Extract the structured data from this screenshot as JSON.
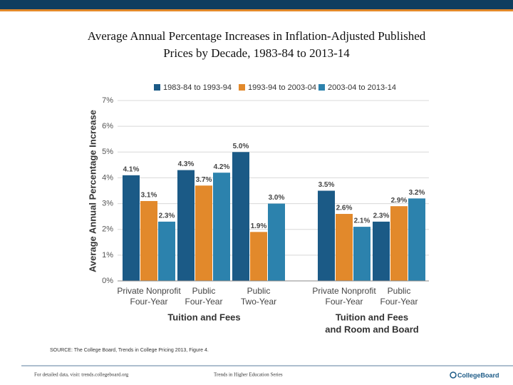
{
  "chart_data": {
    "type": "bar",
    "title": "Average Annual Percentage Increases in Inflation-Adjusted Published Prices by Decade, 1983-84 to 2013-14",
    "ylabel": "Average Annual Percentage Increase",
    "categories": [
      [
        "Private Nonprofit",
        "Four-Year"
      ],
      [
        "Public",
        "Four-Year"
      ],
      [
        "Public",
        "Two-Year"
      ],
      [
        "Private Nonprofit",
        "Four-Year"
      ],
      [
        "Public",
        "Four-Year"
      ]
    ],
    "groups": [
      [
        "Tuition and Fees"
      ],
      [
        "Tuition and Fees",
        "and Room and Board"
      ]
    ],
    "series": [
      {
        "name": "1983-84 to 1993-94",
        "color": "#1b5a86",
        "values": [
          4.1,
          4.3,
          5.0,
          3.5,
          2.3
        ],
        "value_labels": [
          "4.1%",
          "4.3%",
          "5.0%",
          "3.5%",
          "2.3%"
        ]
      },
      {
        "name": "1993-94 to 2003-04",
        "color": "#e2892b",
        "values": [
          3.1,
          3.7,
          1.9,
          2.6,
          2.9
        ],
        "value_labels": [
          "3.1%",
          "3.7%",
          "1.9%",
          "2.6%",
          "2.9%"
        ]
      },
      {
        "name": "2003-04 to 2013-14",
        "color": "#2c82ad",
        "values": [
          2.3,
          4.2,
          3.0,
          2.1,
          3.2
        ],
        "value_labels": [
          "2.3%",
          "4.2%",
          "3.0%",
          "2.1%",
          "3.2%"
        ]
      }
    ],
    "ylim": [
      0,
      7
    ],
    "yticks": [
      {
        "value": 0,
        "label": "0%"
      },
      {
        "value": 1,
        "label": "1%"
      },
      {
        "value": 2,
        "label": "2%"
      },
      {
        "value": 3,
        "label": "3%"
      },
      {
        "value": 4,
        "label": "4%"
      },
      {
        "value": 5,
        "label": "5%"
      },
      {
        "value": 6,
        "label": "6%"
      },
      {
        "value": 7,
        "label": "7%"
      }
    ],
    "grid": true,
    "source": "SOURCE: The College Board, Trends in College Pricing 2013, Figure 4."
  },
  "footer": {
    "left": "For detailed data, visit: trends.collegeboard.org",
    "center": "Trends in Higher Education Series",
    "logo": "CollegeBoard"
  }
}
